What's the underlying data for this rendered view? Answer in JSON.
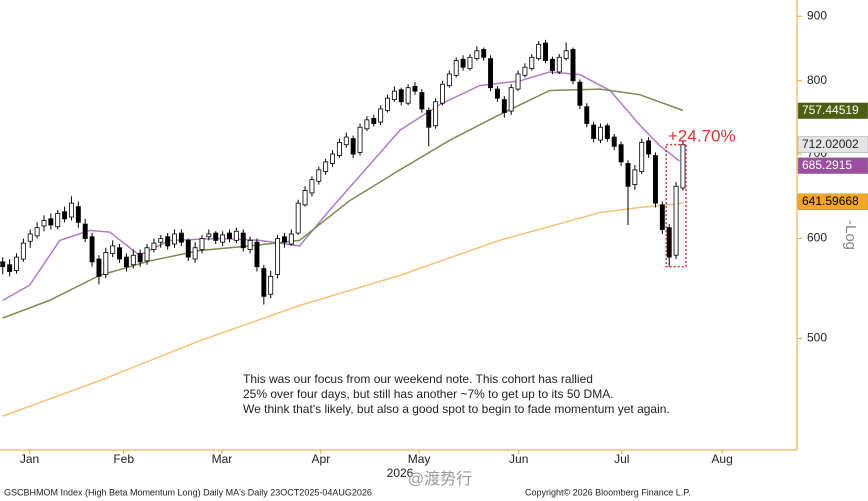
{
  "chart_data": {
    "type": "candlestick",
    "xlim": [
      -0.4,
      115.6
    ],
    "xticks": [
      {
        "value": 3.9,
        "label": "Jan"
      },
      {
        "value": 17.6,
        "label": "Feb"
      },
      {
        "value": 31.9,
        "label": "Mar"
      },
      {
        "value": 46.3,
        "label": "Apr"
      },
      {
        "value": 60.6,
        "label": "May"
      },
      {
        "value": 75.1,
        "label": "Jun"
      },
      {
        "value": 90.1,
        "label": "Jul"
      },
      {
        "value": 104.7,
        "label": "Aug"
      }
    ],
    "year_label": "2026",
    "ylim": [
      408,
      927
    ],
    "yticks": [
      500,
      600,
      700,
      800,
      900
    ],
    "log_scale": true,
    "up_color": "#ffffff",
    "down_color": "#000000",
    "ohlc": [
      [
        575,
        580,
        562,
        570
      ],
      [
        572,
        578,
        560,
        565
      ],
      [
        566,
        584,
        563,
        580
      ],
      [
        578,
        600,
        575,
        595
      ],
      [
        597,
        610,
        590,
        605
      ],
      [
        603,
        618,
        600,
        612
      ],
      [
        614,
        626,
        608,
        620
      ],
      [
        622,
        628,
        610,
        615
      ],
      [
        613,
        632,
        610,
        628
      ],
      [
        630,
        636,
        618,
        622
      ],
      [
        624,
        648,
        620,
        640
      ],
      [
        636,
        642,
        612,
        618
      ],
      [
        616,
        622,
        596,
        600
      ],
      [
        602,
        606,
        570,
        575
      ],
      [
        578,
        582,
        552,
        560
      ],
      [
        562,
        590,
        558,
        585
      ],
      [
        584,
        598,
        580,
        592
      ],
      [
        590,
        594,
        574,
        578
      ],
      [
        580,
        584,
        565,
        570
      ],
      [
        572,
        588,
        568,
        582
      ],
      [
        584,
        588,
        570,
        575
      ],
      [
        576,
        594,
        572,
        590
      ],
      [
        588,
        600,
        585,
        595
      ],
      [
        596,
        604,
        590,
        600
      ],
      [
        602,
        606,
        588,
        592
      ],
      [
        594,
        610,
        590,
        605
      ],
      [
        606,
        610,
        592,
        596
      ],
      [
        598,
        600,
        576,
        580
      ],
      [
        578,
        596,
        574,
        590
      ],
      [
        588,
        604,
        584,
        600
      ],
      [
        602,
        610,
        598,
        605
      ],
      [
        606,
        608,
        594,
        598
      ],
      [
        596,
        608,
        592,
        604
      ],
      [
        606,
        610,
        596,
        600
      ],
      [
        598,
        612,
        595,
        608
      ],
      [
        606,
        610,
        586,
        590
      ],
      [
        588,
        602,
        584,
        598
      ],
      [
        596,
        600,
        565,
        570
      ],
      [
        568,
        572,
        532,
        540
      ],
      [
        542,
        566,
        538,
        560
      ],
      [
        562,
        604,
        558,
        600
      ],
      [
        602,
        606,
        590,
        596
      ],
      [
        594,
        610,
        592,
        605
      ],
      [
        606,
        644,
        604,
        640
      ],
      [
        638,
        660,
        636,
        655
      ],
      [
        652,
        672,
        648,
        668
      ],
      [
        666,
        684,
        662,
        680
      ],
      [
        678,
        694,
        674,
        690
      ],
      [
        688,
        705,
        684,
        700
      ],
      [
        698,
        720,
        695,
        715
      ],
      [
        712,
        728,
        708,
        722
      ],
      [
        720,
        724,
        695,
        700
      ],
      [
        702,
        740,
        698,
        735
      ],
      [
        733,
        750,
        730,
        745
      ],
      [
        747,
        752,
        736,
        740
      ],
      [
        742,
        765,
        738,
        760
      ],
      [
        758,
        780,
        755,
        775
      ],
      [
        773,
        792,
        770,
        785
      ],
      [
        787,
        790,
        765,
        770
      ],
      [
        768,
        795,
        765,
        790
      ],
      [
        792,
        798,
        780,
        785
      ],
      [
        783,
        788,
        755,
        760
      ],
      [
        758,
        762,
        710,
        735
      ],
      [
        737,
        775,
        733,
        770
      ],
      [
        768,
        800,
        765,
        795
      ],
      [
        793,
        815,
        790,
        810
      ],
      [
        808,
        835,
        805,
        830
      ],
      [
        832,
        838,
        815,
        820
      ],
      [
        818,
        840,
        815,
        835
      ],
      [
        833,
        852,
        830,
        845
      ],
      [
        847,
        850,
        830,
        835
      ],
      [
        833,
        838,
        785,
        790
      ],
      [
        788,
        792,
        770,
        775
      ],
      [
        773,
        778,
        748,
        755
      ],
      [
        757,
        795,
        752,
        790
      ],
      [
        788,
        815,
        785,
        810
      ],
      [
        808,
        826,
        805,
        820
      ],
      [
        818,
        840,
        815,
        835
      ],
      [
        833,
        860,
        830,
        855
      ],
      [
        857,
        862,
        826,
        830
      ],
      [
        832,
        836,
        810,
        815
      ],
      [
        813,
        840,
        810,
        835
      ],
      [
        833,
        858,
        830,
        845
      ],
      [
        847,
        850,
        795,
        800
      ],
      [
        798,
        802,
        760,
        765
      ],
      [
        763,
        768,
        735,
        740
      ],
      [
        738,
        742,
        715,
        720
      ],
      [
        718,
        740,
        714,
        735
      ],
      [
        737,
        740,
        716,
        720
      ],
      [
        722,
        726,
        705,
        710
      ],
      [
        712,
        716,
        685,
        690
      ],
      [
        688,
        692,
        615,
        660
      ],
      [
        662,
        686,
        656,
        680
      ],
      [
        678,
        720,
        675,
        715
      ],
      [
        717,
        722,
        695,
        700
      ],
      [
        698,
        702,
        635,
        640
      ],
      [
        638,
        642,
        605,
        610
      ],
      [
        612,
        616,
        570,
        580
      ],
      [
        582,
        665,
        578,
        660
      ],
      [
        658,
        716,
        655,
        712.02
      ]
    ],
    "series": [
      {
        "color": "#b07cc6",
        "x": [
          0,
          3.9,
          8.3,
          12.7,
          15.6,
          19.9,
          24.3,
          31.6,
          37.4,
          43.2,
          47.6,
          52,
          57.8,
          63.6,
          69.4,
          75.3,
          79.6,
          84,
          88.4,
          92.7,
          95.6,
          98.5
        ],
        "values": [
          536,
          551,
          598,
          609,
          607,
          582,
          598,
          600,
          598,
          592,
          632,
          673,
          731,
          766,
          793,
          800,
          813,
          809,
          786,
          738,
          711,
          691
        ]
      },
      {
        "color": "#7d8a52",
        "x": [
          0,
          6.8,
          14.1,
          21.4,
          28.7,
          36,
          43.2,
          50.5,
          57.8,
          65.1,
          72.3,
          79.6,
          86.9,
          92.7,
          99
        ],
        "values": [
          519,
          536,
          561,
          576,
          587,
          592,
          598,
          643,
          680,
          718,
          752,
          786,
          788,
          780,
          758
        ]
      },
      {
        "color": "#f2c27a",
        "x": [
          0,
          14.1,
          28.7,
          43.2,
          57.8,
          72.3,
          86.9,
          92.7,
          99
        ],
        "values": [
          434,
          463,
          498,
          531,
          561,
          598,
          629,
          635,
          640
        ]
      }
    ],
    "price_tags": [
      {
        "value": 757.44519,
        "color": "#4b5e12",
        "text_color": "#ffffff"
      },
      {
        "value": 712.02002,
        "color": "#e4e4e4",
        "text_color": "#222222"
      },
      {
        "value": 685.2915,
        "color": "#9a4fa0",
        "text_color": "#ffffff"
      },
      {
        "value": 641.59668,
        "color": "#f5a623",
        "text_color": "#000000"
      }
    ],
    "annotation": "+24.70%",
    "note": [
      "This was our focus from our weekend note. This cohort has rallied",
      "25% over four days, but still has another ~7% to get up to its 50 DMA.",
      "We think that's likely, but also a good spot to begin to fade momentum yet again."
    ],
    "scale_label": "-Log",
    "watermark": "@渡势行",
    "footer_left": "GSCBHMOM Index (High Beta Momentum Long) Daily MA's Daily 23OCT2025-04AUG2026",
    "footer_right": "Copyright© 2026 Bloomberg Finance L.P."
  }
}
